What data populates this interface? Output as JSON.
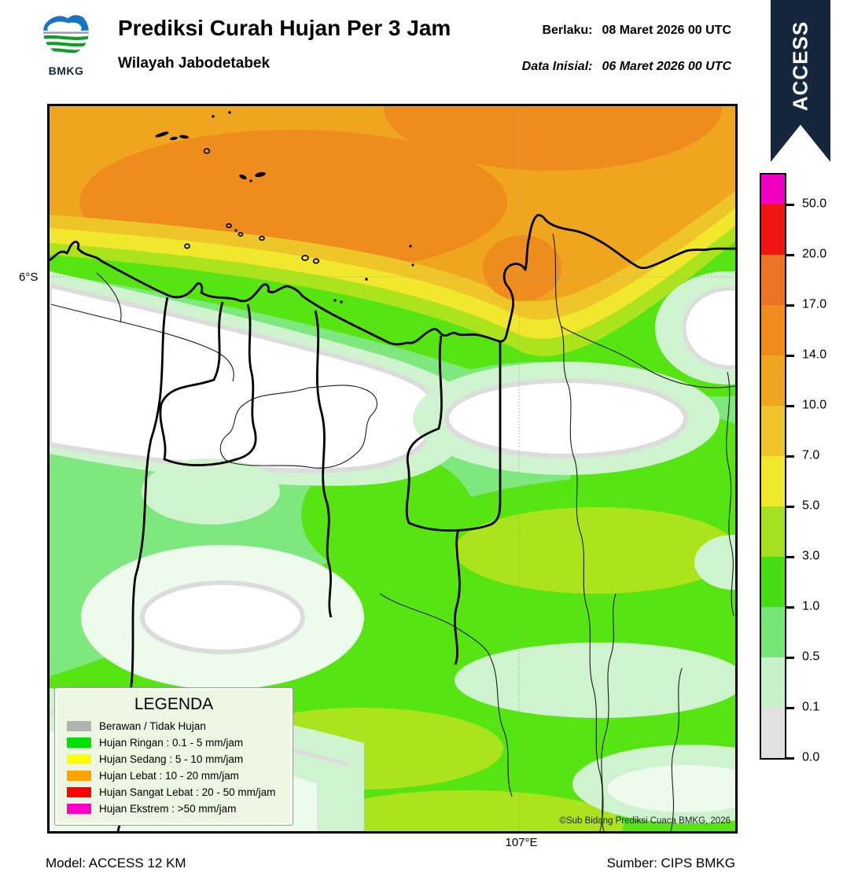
{
  "header": {
    "logo_text": "BMKG",
    "title": "Prediksi Curah Hujan Per 3 Jam",
    "subtitle": "Wilayah Jabodetabek",
    "valid_label": "Berlaku:",
    "valid_value": "08 Maret 2026 00 UTC",
    "init_label": "Data Inisial:",
    "init_value": "06 Maret 2026 00 UTC",
    "ribbon": "ACCESS",
    "ribbon_color": "#16263C"
  },
  "axis": {
    "lat": "6°S",
    "lon": "107°E"
  },
  "map": {
    "copyright": "©Sub Bidang Prediksi Cuaca BMKG, 2026"
  },
  "colorbar": {
    "ticks": [
      "50.0",
      "20.0",
      "17.0",
      "14.0",
      "10.0",
      "7.0",
      "5.0",
      "3.0",
      "1.0",
      "0.5",
      "0.1",
      "0.0"
    ],
    "segment_colors": [
      "#F000C0",
      "#F01414",
      "#EC7324",
      "#F08C1E",
      "#EFA51F",
      "#EFC42A",
      "#F1E72C",
      "#A5E121",
      "#46DD12",
      "#76E676",
      "#C9F1C9",
      "#E1E1E1"
    ]
  },
  "legend": {
    "title": "LEGENDA",
    "items": [
      {
        "label": "Berawan / Tidak Hujan",
        "color": "#B2B2B2"
      },
      {
        "label": "Hujan Ringan : 0.1 - 5 mm/jam",
        "color": "#00E000"
      },
      {
        "label": "Hujan Sedang : 5 - 10 mm/jam",
        "color": "#FFFF00"
      },
      {
        "label": "Hujan Lebat : 10 - 20 mm/jam",
        "color": "#FFA300"
      },
      {
        "label": "Hujan Sangat Lebat : 20 - 50 mm/jam",
        "color": "#FF0000"
      },
      {
        "label": "Hujan Ekstrem : >50 mm/jam",
        "color": "#FF00C8"
      }
    ]
  },
  "palette": {
    "amber": "#F0A51E",
    "orange_dark": "#EE8C1E",
    "gold": "#EFC62A",
    "yellow": "#F1E72C",
    "yellow_green": "#ABE31C",
    "green_bright": "#57E413",
    "green_medium": "#7EE87E",
    "green_pale": "#CFF3CF",
    "green_faint": "#EDFBED",
    "gray_rim": "#DCDCDC"
  },
  "footer": {
    "model": "Model: ACCESS 12 KM",
    "source": "Sumber: CIPS BMKG"
  }
}
